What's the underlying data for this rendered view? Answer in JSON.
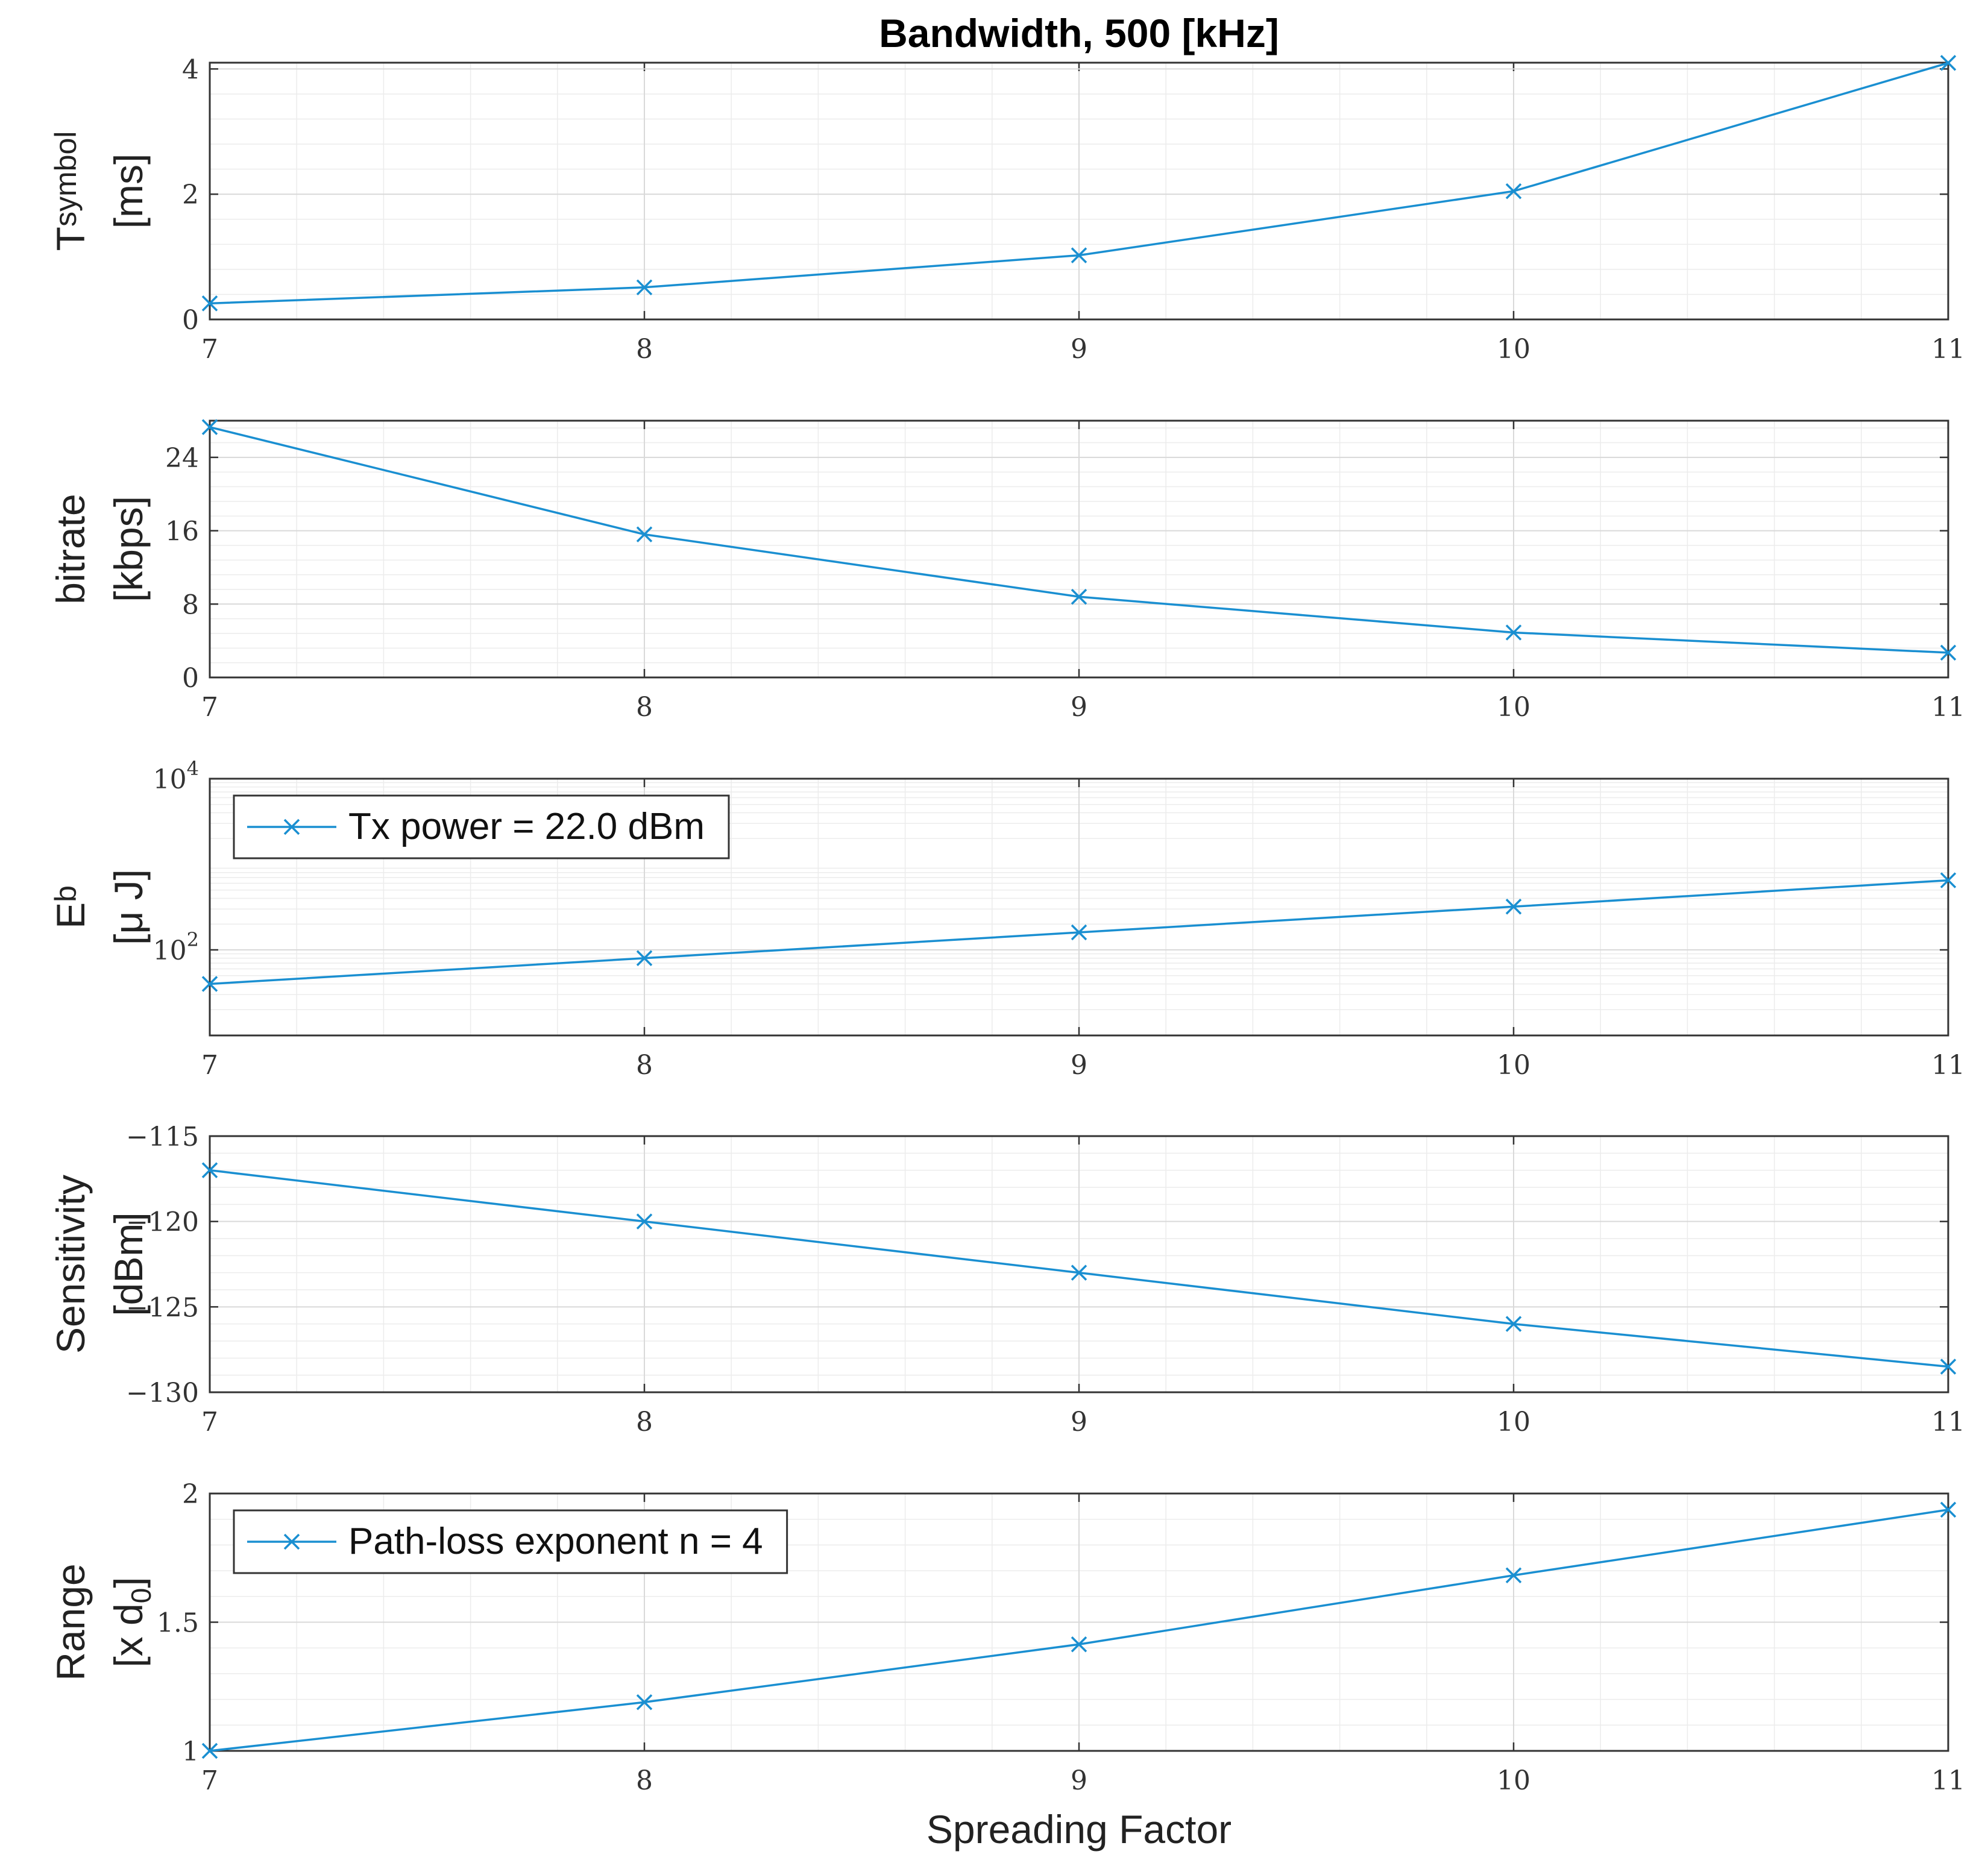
{
  "figure": {
    "title": "Bandwidth, 500 [kHz]",
    "xlabel": "Spreading Factor",
    "line_color": "#1a8fd1"
  },
  "chart_data": [
    {
      "type": "line",
      "name": "tsymbol",
      "scale": "linear",
      "ylabel_main": "T",
      "ylabel_sub": "symbol",
      "ylabel_line2": "[ms]",
      "x": [
        7,
        8,
        9,
        10,
        11
      ],
      "ylim": [
        0,
        4.1
      ],
      "yticks": [
        0,
        2,
        4
      ],
      "ytick_labels": [
        "0",
        "2",
        "4"
      ],
      "xticks": [
        "7",
        "8",
        "9",
        "10",
        "11"
      ],
      "legend": null,
      "series": [
        {
          "name": "T_symbol",
          "values": [
            0.256,
            0.512,
            1.024,
            2.048,
            4.096
          ]
        }
      ]
    },
    {
      "type": "line",
      "name": "bitrate",
      "scale": "linear",
      "ylabel_main": "bitrate",
      "ylabel_line2": "[kbps]",
      "x": [
        7,
        8,
        9,
        10,
        11
      ],
      "ylim": [
        0,
        28
      ],
      "yticks": [
        0,
        8,
        16,
        24
      ],
      "ytick_labels": [
        "0",
        "8",
        "16",
        "24"
      ],
      "xticks": [
        "7",
        "8",
        "9",
        "10",
        "11"
      ],
      "legend": null,
      "series": [
        {
          "name": "bitrate",
          "values": [
            27.3,
            15.6,
            8.8,
            4.9,
            2.7
          ]
        }
      ]
    },
    {
      "type": "line",
      "name": "eb",
      "scale": "log",
      "ylabel_main": "E",
      "ylabel_sub": "b",
      "ylabel_line2": "[μ J]",
      "x": [
        7,
        8,
        9,
        10,
        11
      ],
      "ylim": [
        10,
        10000
      ],
      "yticks": [
        100,
        10000
      ],
      "ytick_labels": [
        {
          "base": "10",
          "exp": "2"
        },
        {
          "base": "10",
          "exp": "4"
        }
      ],
      "xticks": [
        "7",
        "8",
        "9",
        "10",
        "11"
      ],
      "legend": {
        "label": "Tx power = 22.0 dBm",
        "position": "top-left"
      },
      "series": [
        {
          "name": "Tx power = 22.0 dBm",
          "values": [
            40,
            80,
            160,
            320,
            650
          ]
        }
      ]
    },
    {
      "type": "line",
      "name": "sensitivity",
      "scale": "linear",
      "ylabel_main": "Sensitivity",
      "ylabel_line2": "[dBm]",
      "x": [
        7,
        8,
        9,
        10,
        11
      ],
      "ylim": [
        -130,
        -115
      ],
      "yticks": [
        -130,
        -125,
        -120,
        -115
      ],
      "ytick_labels": [
        "−130",
        "−125",
        "−120",
        "−115"
      ],
      "xticks": [
        "7",
        "8",
        "9",
        "10",
        "11"
      ],
      "legend": null,
      "series": [
        {
          "name": "Sensitivity",
          "values": [
            -117,
            -120,
            -123,
            -126,
            -128.5
          ]
        }
      ]
    },
    {
      "type": "line",
      "name": "range",
      "scale": "linear",
      "ylabel_main": "Range",
      "ylabel_line2_main": "[x d",
      "ylabel_line2_sub": "0",
      "ylabel_line2_end": "]",
      "x": [
        7,
        8,
        9,
        10,
        11
      ],
      "ylim": [
        1,
        2
      ],
      "yticks": [
        1,
        1.5,
        2
      ],
      "ytick_labels": [
        "1",
        "1.5",
        "2"
      ],
      "xticks": [
        "7",
        "8",
        "9",
        "10",
        "11"
      ],
      "legend": {
        "label": "Path-loss exponent n = 4",
        "position": "top-left"
      },
      "series": [
        {
          "name": "Path-loss exponent n = 4",
          "values": [
            1.0,
            1.189,
            1.414,
            1.682,
            1.937
          ]
        }
      ]
    }
  ]
}
